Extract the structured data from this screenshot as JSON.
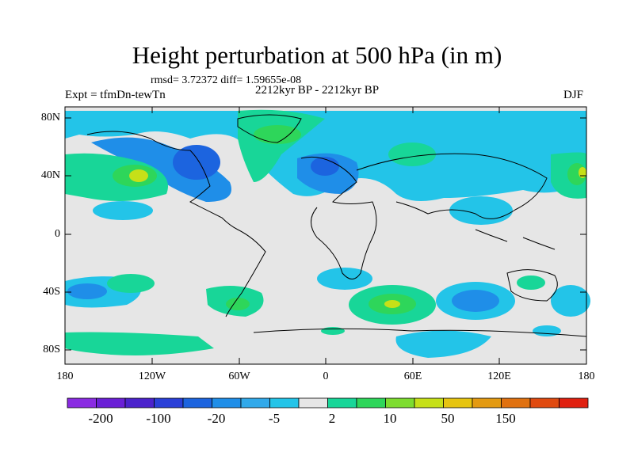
{
  "title": "Height perturbation at 500 hPa (in m)",
  "stats_line": "rmsd= 3.72372 diff= 1.59655e-08",
  "left_label": "Expt = tfmDn-tewTn",
  "center_label": "2212kyr BP - 2212kyr BP",
  "right_label": "DJF",
  "y_ticks": [
    "80N",
    "40N",
    "0",
    "40S",
    "80S"
  ],
  "x_ticks": [
    "180",
    "120W",
    "60W",
    "0",
    "60E",
    "120E",
    "180"
  ],
  "colorbar": {
    "labels": [
      "-200",
      "-100",
      "-20",
      "-5",
      "2",
      "10",
      "50",
      "150"
    ],
    "colors": [
      "#8a2be2",
      "#6a1fd6",
      "#4b22cc",
      "#2a3fd8",
      "#1c64df",
      "#1f8ee8",
      "#31a9ea",
      "#23c4e8",
      "#e6e6e6",
      "#18d698",
      "#2ed65a",
      "#7ddc2f",
      "#c6e018",
      "#e6c410",
      "#e39a12",
      "#e07110",
      "#e04a10",
      "#e02010"
    ]
  }
}
